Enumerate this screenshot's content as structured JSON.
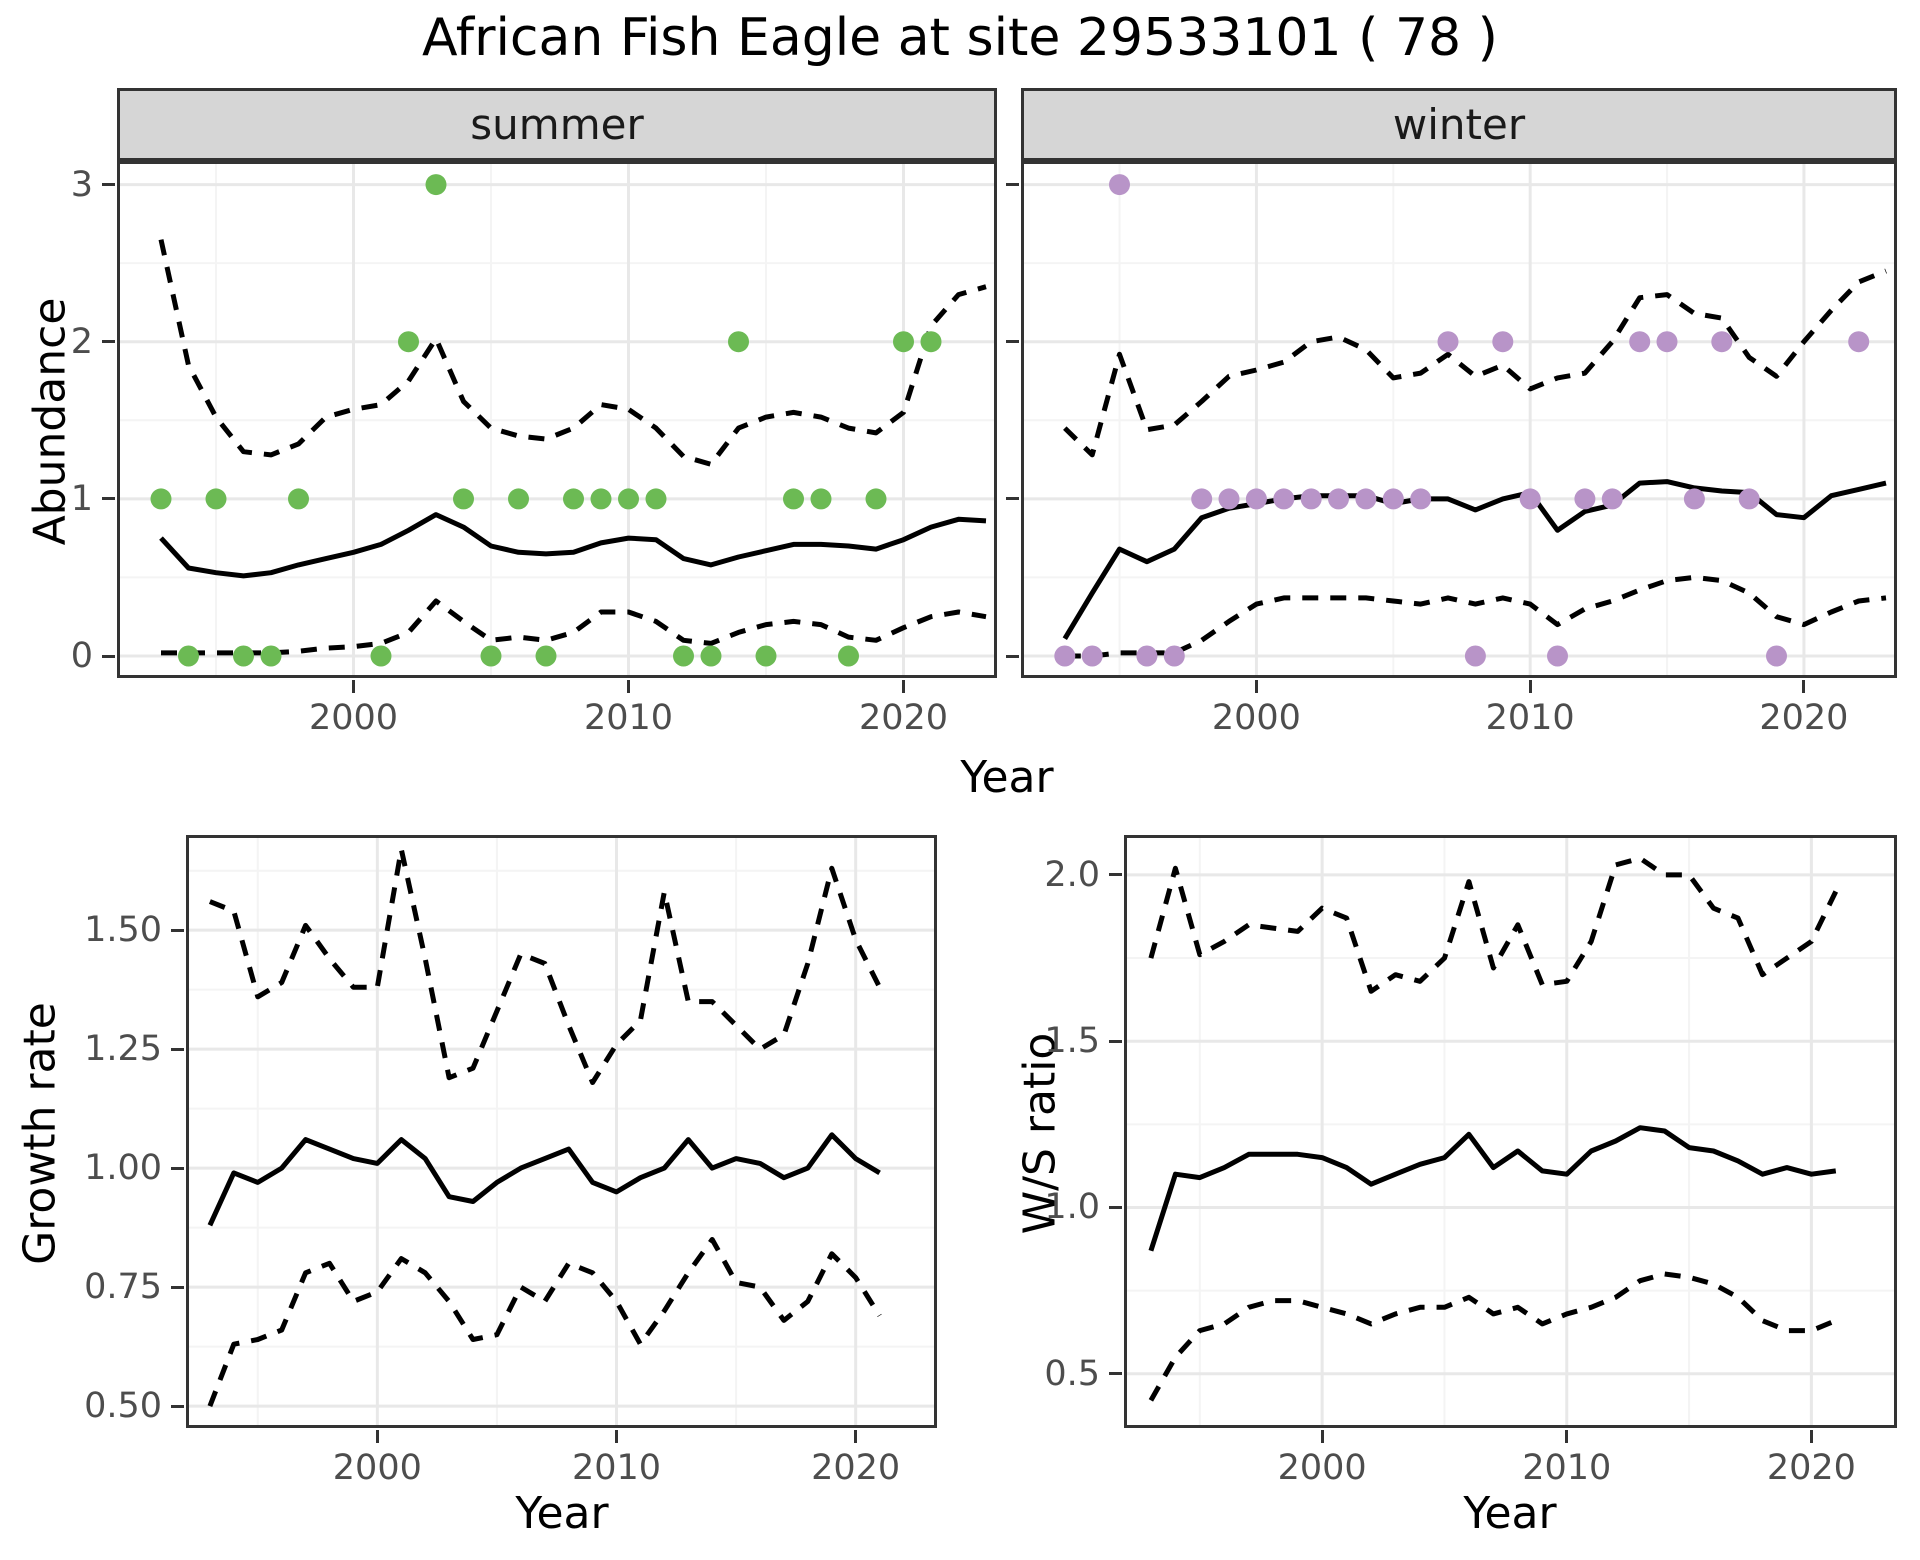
{
  "title": "African Fish Eagle at site 29533101 ( 78 )",
  "facet_labels": [
    "summer",
    "winter"
  ],
  "axes": {
    "abundance_label": "Abundance",
    "year_label": "Year",
    "growth_label": "Growth rate",
    "ws_label": "W/S ratio"
  },
  "colors": {
    "summer_point": "#6cba54",
    "winter_point": "#b894c8",
    "line": "#000000",
    "grid_major": "#e8e8e8",
    "grid_minor": "#f4f4f4",
    "strip_bg": "#d6d6d6",
    "panel_border": "#333333",
    "tick_text": "#4d4d4d"
  },
  "chart_data": [
    {
      "id": "abundance-summer",
      "type": "line",
      "facet": "summer",
      "title": "",
      "xlabel": "Year",
      "ylabel": "Abundance",
      "xlim": [
        1991.4,
        2023.4
      ],
      "ylim": [
        -0.14,
        3.15
      ],
      "xticks": [
        2000,
        2010,
        2020
      ],
      "xtick_labels": [
        "2000",
        "2010",
        "2020"
      ],
      "xticks_minor": [
        1995,
        2005,
        2015
      ],
      "yticks": [
        0,
        1,
        2,
        3
      ],
      "ytick_labels": [
        "0",
        "1",
        "2",
        "3"
      ],
      "yticks_minor": [
        0.5,
        1.5,
        2.5
      ],
      "show_ytick_labels": true,
      "legend": "none",
      "grid": true,
      "years": [
        1993,
        1994,
        1995,
        1996,
        1997,
        1998,
        1999,
        2000,
        2001,
        2002,
        2003,
        2004,
        2005,
        2006,
        2007,
        2008,
        2009,
        2010,
        2011,
        2012,
        2013,
        2014,
        2015,
        2016,
        2017,
        2018,
        2019,
        2020,
        2021,
        2022,
        2023
      ],
      "series": [
        {
          "name": "mean",
          "style": "solid",
          "values": [
            0.75,
            0.56,
            0.53,
            0.51,
            0.53,
            0.58,
            0.62,
            0.66,
            0.71,
            0.8,
            0.9,
            0.82,
            0.7,
            0.66,
            0.65,
            0.66,
            0.72,
            0.75,
            0.74,
            0.62,
            0.58,
            0.63,
            0.67,
            0.71,
            0.71,
            0.7,
            0.68,
            0.74,
            0.82,
            0.87,
            0.86
          ]
        },
        {
          "name": "upper_CI",
          "style": "dashed",
          "values": [
            2.65,
            1.85,
            1.52,
            1.3,
            1.28,
            1.35,
            1.52,
            1.57,
            1.6,
            1.75,
            2.02,
            1.62,
            1.45,
            1.4,
            1.38,
            1.45,
            1.6,
            1.57,
            1.45,
            1.27,
            1.22,
            1.45,
            1.52,
            1.55,
            1.52,
            1.45,
            1.42,
            1.55,
            2.1,
            2.3,
            2.35
          ]
        },
        {
          "name": "lower_CI",
          "style": "dashed",
          "values": [
            0.02,
            0.02,
            0.02,
            0.02,
            0.02,
            0.03,
            0.05,
            0.06,
            0.08,
            0.15,
            0.35,
            0.22,
            0.1,
            0.12,
            0.1,
            0.15,
            0.28,
            0.28,
            0.22,
            0.1,
            0.08,
            0.15,
            0.2,
            0.22,
            0.2,
            0.12,
            0.1,
            0.18,
            0.25,
            0.28,
            0.25
          ]
        }
      ],
      "points": {
        "color_key": "summer_point",
        "x": [
          1993,
          1994,
          1995,
          1996,
          1997,
          1998,
          2001,
          2002,
          2003,
          2004,
          2005,
          2006,
          2007,
          2008,
          2009,
          2010,
          2011,
          2012,
          2013,
          2014,
          2015,
          2016,
          2017,
          2018,
          2019,
          2020,
          2021
        ],
        "y": [
          1,
          0,
          1,
          0,
          0,
          1,
          0,
          2,
          3,
          1,
          0,
          1,
          0,
          1,
          1,
          1,
          1,
          0,
          0,
          2,
          0,
          1,
          1,
          0,
          1,
          2,
          2
        ]
      }
    },
    {
      "id": "abundance-winter",
      "type": "line",
      "facet": "winter",
      "title": "",
      "xlabel": "Year",
      "ylabel": "Abundance",
      "xlim": [
        1991.4,
        2023.4
      ],
      "ylim": [
        -0.14,
        3.15
      ],
      "xticks": [
        2000,
        2010,
        2020
      ],
      "xtick_labels": [
        "2000",
        "2010",
        "2020"
      ],
      "xticks_minor": [
        1995,
        2005,
        2015
      ],
      "yticks": [
        0,
        1,
        2,
        3
      ],
      "ytick_labels": [
        "0",
        "1",
        "2",
        "3"
      ],
      "yticks_minor": [
        0.5,
        1.5,
        2.5
      ],
      "show_ytick_labels": false,
      "legend": "none",
      "grid": true,
      "years": [
        1993,
        1994,
        1995,
        1996,
        1997,
        1998,
        1999,
        2000,
        2001,
        2002,
        2003,
        2004,
        2005,
        2006,
        2007,
        2008,
        2009,
        2010,
        2011,
        2012,
        2013,
        2014,
        2015,
        2016,
        2017,
        2018,
        2019,
        2020,
        2021,
        2022,
        2023
      ],
      "series": [
        {
          "name": "mean",
          "style": "solid",
          "values": [
            0.11,
            0.4,
            0.68,
            0.6,
            0.68,
            0.88,
            0.94,
            0.97,
            1.0,
            1.02,
            1.02,
            1.02,
            0.97,
            1.0,
            1.0,
            0.93,
            1.0,
            1.04,
            0.8,
            0.92,
            0.96,
            1.1,
            1.11,
            1.07,
            1.05,
            1.04,
            0.9,
            0.88,
            1.02,
            1.06,
            1.1
          ]
        },
        {
          "name": "upper_CI",
          "style": "dashed",
          "values": [
            1.45,
            1.28,
            1.92,
            1.44,
            1.47,
            1.62,
            1.78,
            1.82,
            1.87,
            2.0,
            2.03,
            1.95,
            1.77,
            1.8,
            1.92,
            1.78,
            1.85,
            1.7,
            1.77,
            1.8,
            2.0,
            2.28,
            2.3,
            2.18,
            2.15,
            1.9,
            1.78,
            2.0,
            2.2,
            2.38,
            2.45
          ]
        },
        {
          "name": "lower_CI",
          "style": "dashed",
          "values": [
            0.0,
            0.0,
            0.02,
            0.02,
            0.02,
            0.1,
            0.22,
            0.33,
            0.37,
            0.37,
            0.37,
            0.37,
            0.35,
            0.33,
            0.37,
            0.33,
            0.37,
            0.33,
            0.2,
            0.3,
            0.35,
            0.42,
            0.48,
            0.5,
            0.48,
            0.4,
            0.25,
            0.2,
            0.28,
            0.35,
            0.37
          ]
        }
      ],
      "points": {
        "color_key": "winter_point",
        "x": [
          1993,
          1994,
          1995,
          1996,
          1997,
          1998,
          1999,
          2000,
          2001,
          2002,
          2003,
          2004,
          2005,
          2006,
          2007,
          2008,
          2009,
          2010,
          2011,
          2012,
          2013,
          2014,
          2015,
          2016,
          2017,
          2018,
          2019,
          2022
        ],
        "y": [
          0,
          0,
          3,
          0,
          0,
          1,
          1,
          1,
          1,
          1,
          1,
          1,
          1,
          1,
          2,
          0,
          2,
          1,
          0,
          1,
          1,
          2,
          2,
          1,
          2,
          1,
          0,
          2
        ]
      }
    },
    {
      "id": "growth-rate",
      "type": "line",
      "facet": "",
      "title": "",
      "xlabel": "Year",
      "ylabel": "Growth rate",
      "xlim": [
        1992.0,
        2023.4
      ],
      "ylim": [
        0.454,
        1.7
      ],
      "xticks": [
        2000,
        2010,
        2020
      ],
      "xtick_labels": [
        "2000",
        "2010",
        "2020"
      ],
      "xticks_minor": [
        1995,
        2005,
        2015
      ],
      "yticks": [
        0.5,
        0.75,
        1.0,
        1.25,
        1.5
      ],
      "ytick_labels": [
        "0.50",
        "0.75",
        "1.00",
        "1.25",
        "1.50"
      ],
      "yticks_minor": [
        0.625,
        0.875,
        1.125,
        1.375,
        1.625
      ],
      "show_ytick_labels": true,
      "legend": "none",
      "grid": true,
      "years": [
        1993,
        1994,
        1995,
        1996,
        1997,
        1998,
        1999,
        2000,
        2001,
        2002,
        2003,
        2004,
        2005,
        2006,
        2007,
        2008,
        2009,
        2010,
        2011,
        2012,
        2013,
        2014,
        2015,
        2016,
        2017,
        2018,
        2019,
        2020,
        2021
      ],
      "series": [
        {
          "name": "mean",
          "style": "solid",
          "values": [
            0.88,
            0.99,
            0.97,
            1.0,
            1.06,
            1.04,
            1.02,
            1.01,
            1.06,
            1.02,
            0.94,
            0.93,
            0.97,
            1.0,
            1.02,
            1.04,
            0.97,
            0.95,
            0.98,
            1.0,
            1.06,
            1.0,
            1.02,
            1.01,
            0.98,
            1.0,
            1.07,
            1.02,
            0.99
          ]
        },
        {
          "name": "upper_CI",
          "style": "dashed",
          "values": [
            1.56,
            1.54,
            1.36,
            1.39,
            1.51,
            1.44,
            1.38,
            1.38,
            1.67,
            1.44,
            1.19,
            1.21,
            1.33,
            1.45,
            1.43,
            1.3,
            1.18,
            1.26,
            1.31,
            1.58,
            1.35,
            1.35,
            1.3,
            1.25,
            1.28,
            1.43,
            1.63,
            1.48,
            1.38
          ]
        },
        {
          "name": "lower_CI",
          "style": "dashed",
          "values": [
            0.5,
            0.63,
            0.64,
            0.66,
            0.78,
            0.8,
            0.72,
            0.74,
            0.81,
            0.78,
            0.72,
            0.64,
            0.65,
            0.75,
            0.72,
            0.8,
            0.78,
            0.72,
            0.63,
            0.7,
            0.78,
            0.85,
            0.76,
            0.75,
            0.68,
            0.72,
            0.82,
            0.77,
            0.69
          ]
        }
      ],
      "points": null
    },
    {
      "id": "ws-ratio",
      "type": "line",
      "facet": "",
      "title": "",
      "xlabel": "Year",
      "ylabel": "W/S ratio",
      "xlim": [
        1991.9,
        2023.5
      ],
      "ylim": [
        0.337,
        2.12
      ],
      "xticks": [
        2000,
        2010,
        2020
      ],
      "xtick_labels": [
        "2000",
        "2010",
        "2020"
      ],
      "xticks_minor": [
        1995,
        2005,
        2015
      ],
      "yticks": [
        0.5,
        1.0,
        1.5,
        2.0
      ],
      "ytick_labels": [
        "0.5",
        "1.0",
        "1.5",
        "2.0"
      ],
      "yticks_minor": [
        0.75,
        1.25,
        1.75
      ],
      "show_ytick_labels": true,
      "legend": "none",
      "grid": true,
      "years": [
        1993,
        1994,
        1995,
        1996,
        1997,
        1998,
        1999,
        2000,
        2001,
        2002,
        2003,
        2004,
        2005,
        2006,
        2007,
        2008,
        2009,
        2010,
        2011,
        2012,
        2013,
        2014,
        2015,
        2016,
        2017,
        2018,
        2019,
        2020,
        2021
      ],
      "series": [
        {
          "name": "mean",
          "style": "solid",
          "values": [
            0.87,
            1.1,
            1.09,
            1.12,
            1.16,
            1.16,
            1.16,
            1.15,
            1.12,
            1.07,
            1.1,
            1.13,
            1.15,
            1.22,
            1.12,
            1.17,
            1.11,
            1.1,
            1.17,
            1.2,
            1.24,
            1.23,
            1.18,
            1.17,
            1.14,
            1.1,
            1.12,
            1.1,
            1.11
          ]
        },
        {
          "name": "upper_CI",
          "style": "dashed",
          "values": [
            1.75,
            2.02,
            1.76,
            1.8,
            1.85,
            1.84,
            1.83,
            1.9,
            1.87,
            1.65,
            1.7,
            1.68,
            1.75,
            1.98,
            1.72,
            1.85,
            1.67,
            1.68,
            1.8,
            2.03,
            2.05,
            2.0,
            2.0,
            1.9,
            1.87,
            1.7,
            1.75,
            1.8,
            1.95
          ]
        },
        {
          "name": "lower_CI",
          "style": "dashed",
          "values": [
            0.42,
            0.55,
            0.63,
            0.65,
            0.7,
            0.72,
            0.72,
            0.7,
            0.68,
            0.65,
            0.68,
            0.7,
            0.7,
            0.73,
            0.68,
            0.7,
            0.65,
            0.68,
            0.7,
            0.73,
            0.78,
            0.8,
            0.79,
            0.77,
            0.73,
            0.66,
            0.63,
            0.63,
            0.66
          ]
        }
      ],
      "points": null
    }
  ]
}
